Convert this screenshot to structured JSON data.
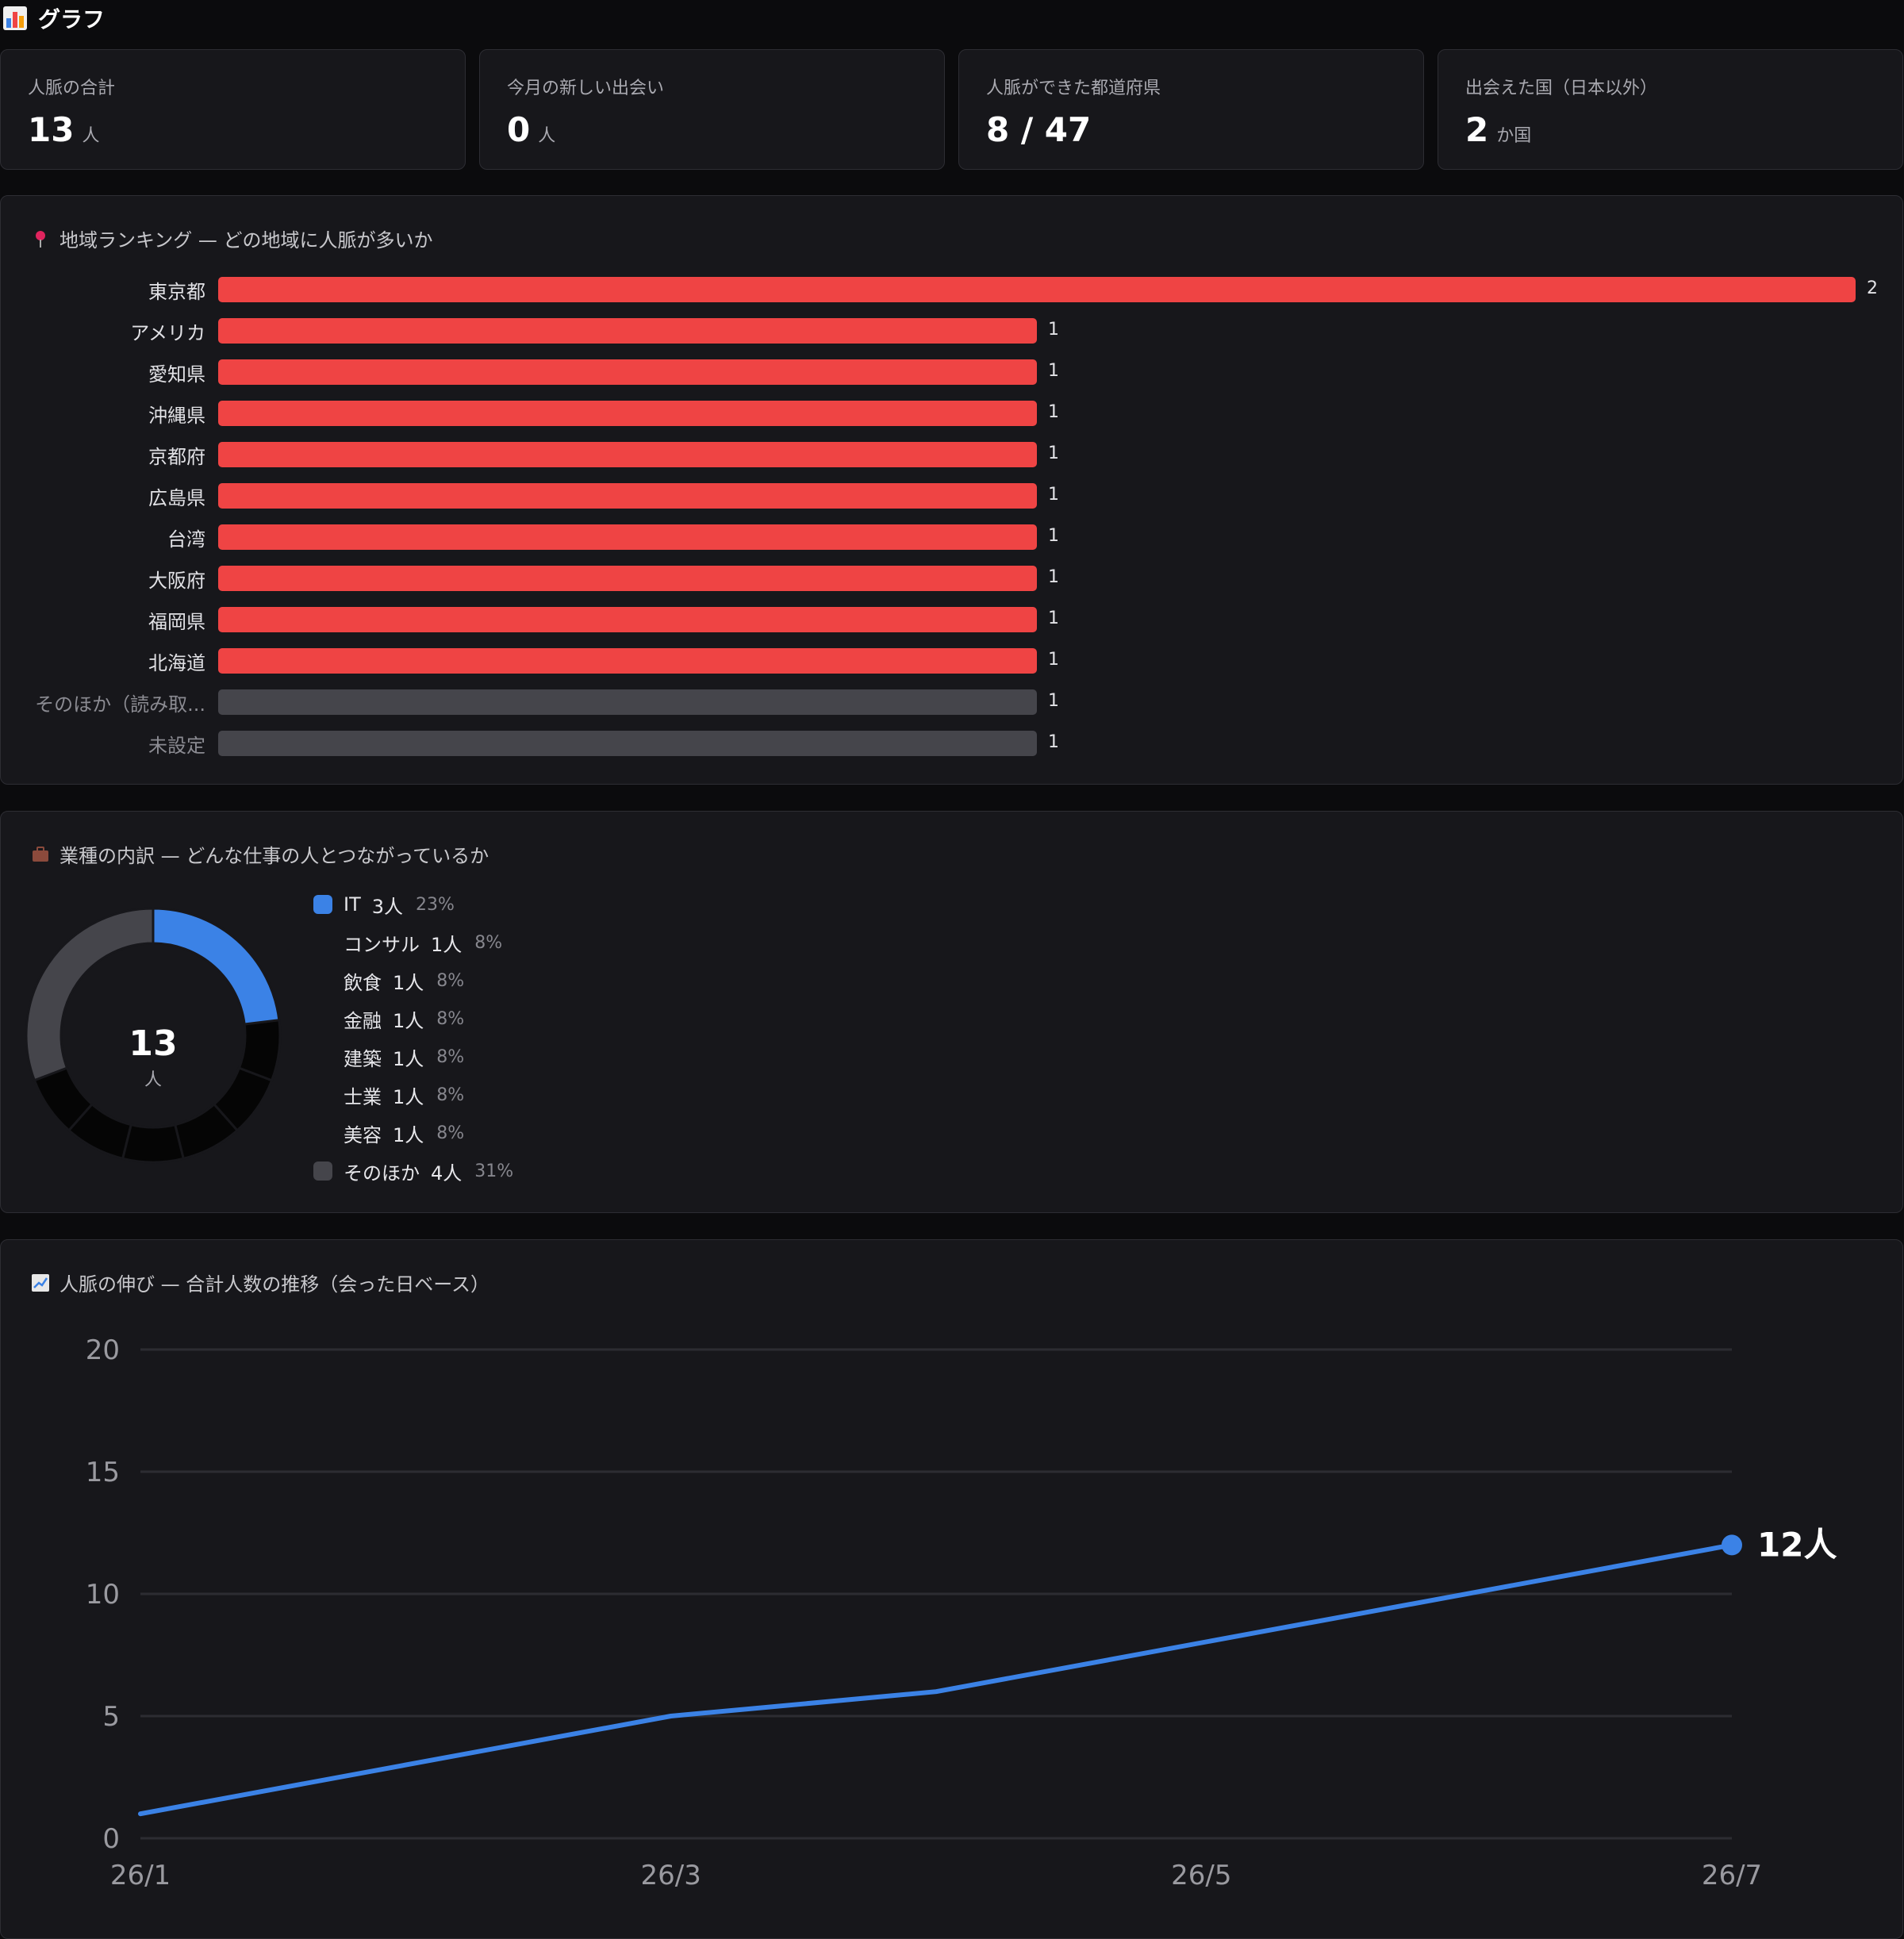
{
  "header": {
    "title": "グラフ",
    "icon": "bar-chart-icon"
  },
  "stats": [
    {
      "label": "人脈の合計",
      "value": "13",
      "unit": "人"
    },
    {
      "label": "今月の新しい出会い",
      "value": "0",
      "unit": "人"
    },
    {
      "label": "人脈ができた都道府県",
      "value": "8 / 47",
      "unit": ""
    },
    {
      "label": "出会えた国（日本以外）",
      "value": "2",
      "unit": "か国"
    }
  ],
  "region": {
    "title": "地域ランキング — どの地域に人脈が多いか",
    "icon": "pin-icon"
  },
  "industry": {
    "title": "業種の内訳 — どんな仕事の人とつながっているか",
    "icon": "briefcase-icon",
    "center_value": "13",
    "center_unit": "人"
  },
  "growth": {
    "title": "人脈の伸び — 合計人数の推移（会った日ベース）",
    "icon": "chart-increasing-icon",
    "end_label": "12人"
  },
  "colors": {
    "red": "#ef4444",
    "gray": "#45454b",
    "blue": "#3b82e6",
    "dark": "#050505"
  },
  "chart_data": [
    {
      "type": "bar",
      "orientation": "horizontal",
      "categories": [
        "東京都",
        "アメリカ",
        "愛知県",
        "沖縄県",
        "京都府",
        "広島県",
        "台湾",
        "大阪府",
        "福岡県",
        "北海道",
        "そのほか（読み取...",
        "未設定"
      ],
      "values": [
        2,
        1,
        1,
        1,
        1,
        1,
        1,
        1,
        1,
        1,
        1,
        1
      ],
      "muted": [
        false,
        false,
        false,
        false,
        false,
        false,
        false,
        false,
        false,
        false,
        true,
        true
      ]
    },
    {
      "type": "pie",
      "donut": true,
      "legend": [
        {
          "label": "IT",
          "count": "3人",
          "pct": "23%",
          "color": "#3b82e6"
        },
        {
          "label": "コンサル",
          "count": "1人",
          "pct": "8%",
          "color": "#050505"
        },
        {
          "label": "飲食",
          "count": "1人",
          "pct": "8%",
          "color": "#050505"
        },
        {
          "label": "金融",
          "count": "1人",
          "pct": "8%",
          "color": "#050505"
        },
        {
          "label": "建築",
          "count": "1人",
          "pct": "8%",
          "color": "#050505"
        },
        {
          "label": "士業",
          "count": "1人",
          "pct": "8%",
          "color": "#050505"
        },
        {
          "label": "美容",
          "count": "1人",
          "pct": "8%",
          "color": "#050505"
        },
        {
          "label": "そのほか",
          "count": "4人",
          "pct": "31%",
          "color": "#45454b"
        }
      ],
      "values": [
        3,
        1,
        1,
        1,
        1,
        1,
        1,
        4
      ]
    },
    {
      "type": "line",
      "x": [
        "26/1",
        "26/3",
        "26/4",
        "26/7"
      ],
      "x_position_months": [
        0,
        2,
        3,
        6
      ],
      "y": [
        1,
        5,
        6,
        12
      ],
      "ylim": [
        0,
        20
      ],
      "yticks": [
        "0",
        "5",
        "10",
        "15",
        "20"
      ],
      "xticks": [
        "26/1",
        "26/3",
        "26/5",
        "26/7"
      ],
      "grid": true
    }
  ]
}
